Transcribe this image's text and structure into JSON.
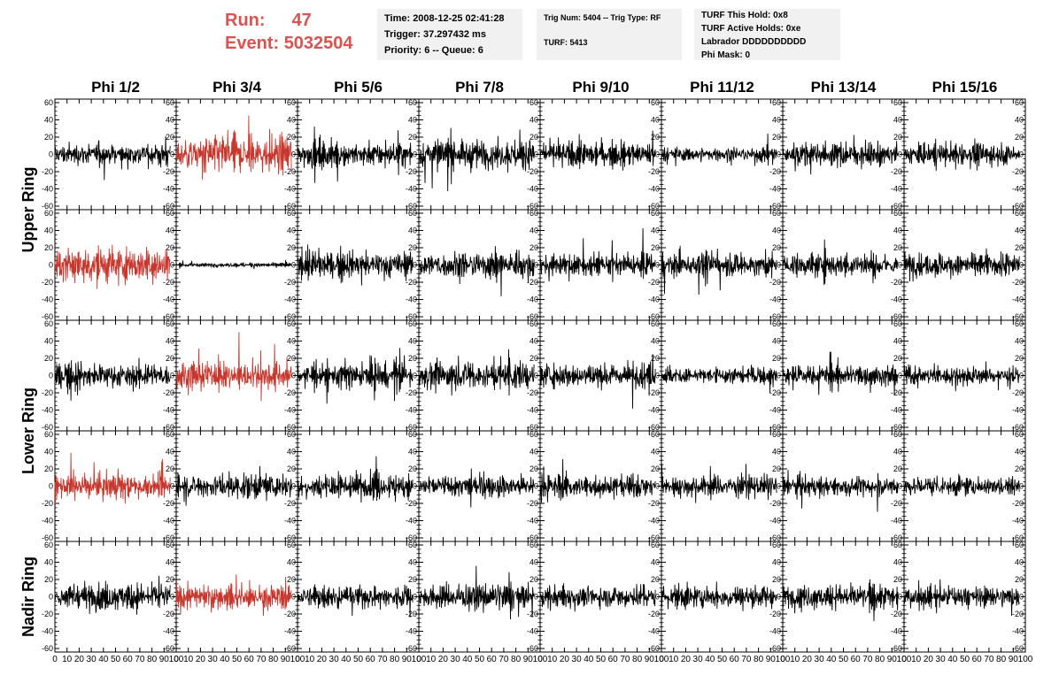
{
  "header": {
    "run_label": "Run:",
    "run_value": "47",
    "event_label": "Event:",
    "event_value": "5032504"
  },
  "info_boxes": {
    "time": "Time: 2008-12-25 02:41:28",
    "trigger": "Trigger: 37.297432 ms",
    "priority": "Priority: 6 -- Queue: 6",
    "trig_num": "Trig Num: 5404 -- Trig Type: RF",
    "turf": "TURF: 5413",
    "turf_hold": "TURF This Hold: 0x8",
    "turf_active": "TURF Active Holds: 0xe",
    "labrador": "Labrador DDDDDDDDDD",
    "phi_mask": "Phi Mask: 0"
  },
  "colors": {
    "normal_trace": "#000000",
    "triggered_trace": "#c8372d",
    "header_accent": "#d9534f",
    "box_bg": "#f1f1f1"
  },
  "chart_data": {
    "type": "line",
    "column_titles": [
      "Phi 1/2",
      "Phi 3/4",
      "Phi 5/6",
      "Phi 7/8",
      "Phi 9/10",
      "Phi 11/12",
      "Phi 13/14",
      "Phi 15/16"
    ],
    "ring_labels": [
      "Upper Ring",
      "Lower Ring",
      "Nadir Ring"
    ],
    "rows": 5,
    "ring_row_spans": [
      [
        0,
        1
      ],
      [
        2,
        3
      ],
      [
        4,
        4
      ]
    ],
    "xlim": [
      0,
      100
    ],
    "ylim": [
      -60,
      60
    ],
    "y_ticks": [
      -60,
      -40,
      -20,
      0,
      20,
      40,
      60
    ],
    "y_tick_labels": [
      "-60",
      "-40",
      "-20",
      "0",
      "20",
      "40",
      "60"
    ],
    "x_ticks": [
      0,
      10,
      20,
      30,
      40,
      50,
      60,
      70,
      80,
      90,
      100
    ],
    "x_tick_labels": [
      "0",
      "10",
      "20",
      "30",
      "40",
      "50",
      "60",
      "70",
      "80",
      "90",
      "100"
    ],
    "samples_per_trace": 260,
    "trace_x_extent": [
      0,
      95
    ],
    "triggered_panels": [
      [
        0,
        1
      ],
      [
        1,
        0
      ],
      [
        2,
        1
      ],
      [
        3,
        0
      ],
      [
        4,
        1
      ]
    ],
    "panel_amplitudes": [
      [
        10,
        18,
        11,
        14,
        11,
        7,
        11,
        10
      ],
      [
        17,
        2,
        12,
        13,
        10,
        11,
        11,
        11
      ],
      [
        11,
        13,
        12,
        13,
        11,
        8,
        10,
        9
      ],
      [
        12,
        11,
        11,
        11,
        10,
        10,
        9,
        9
      ],
      [
        12,
        12,
        10,
        12,
        11,
        11,
        11,
        10
      ]
    ]
  }
}
